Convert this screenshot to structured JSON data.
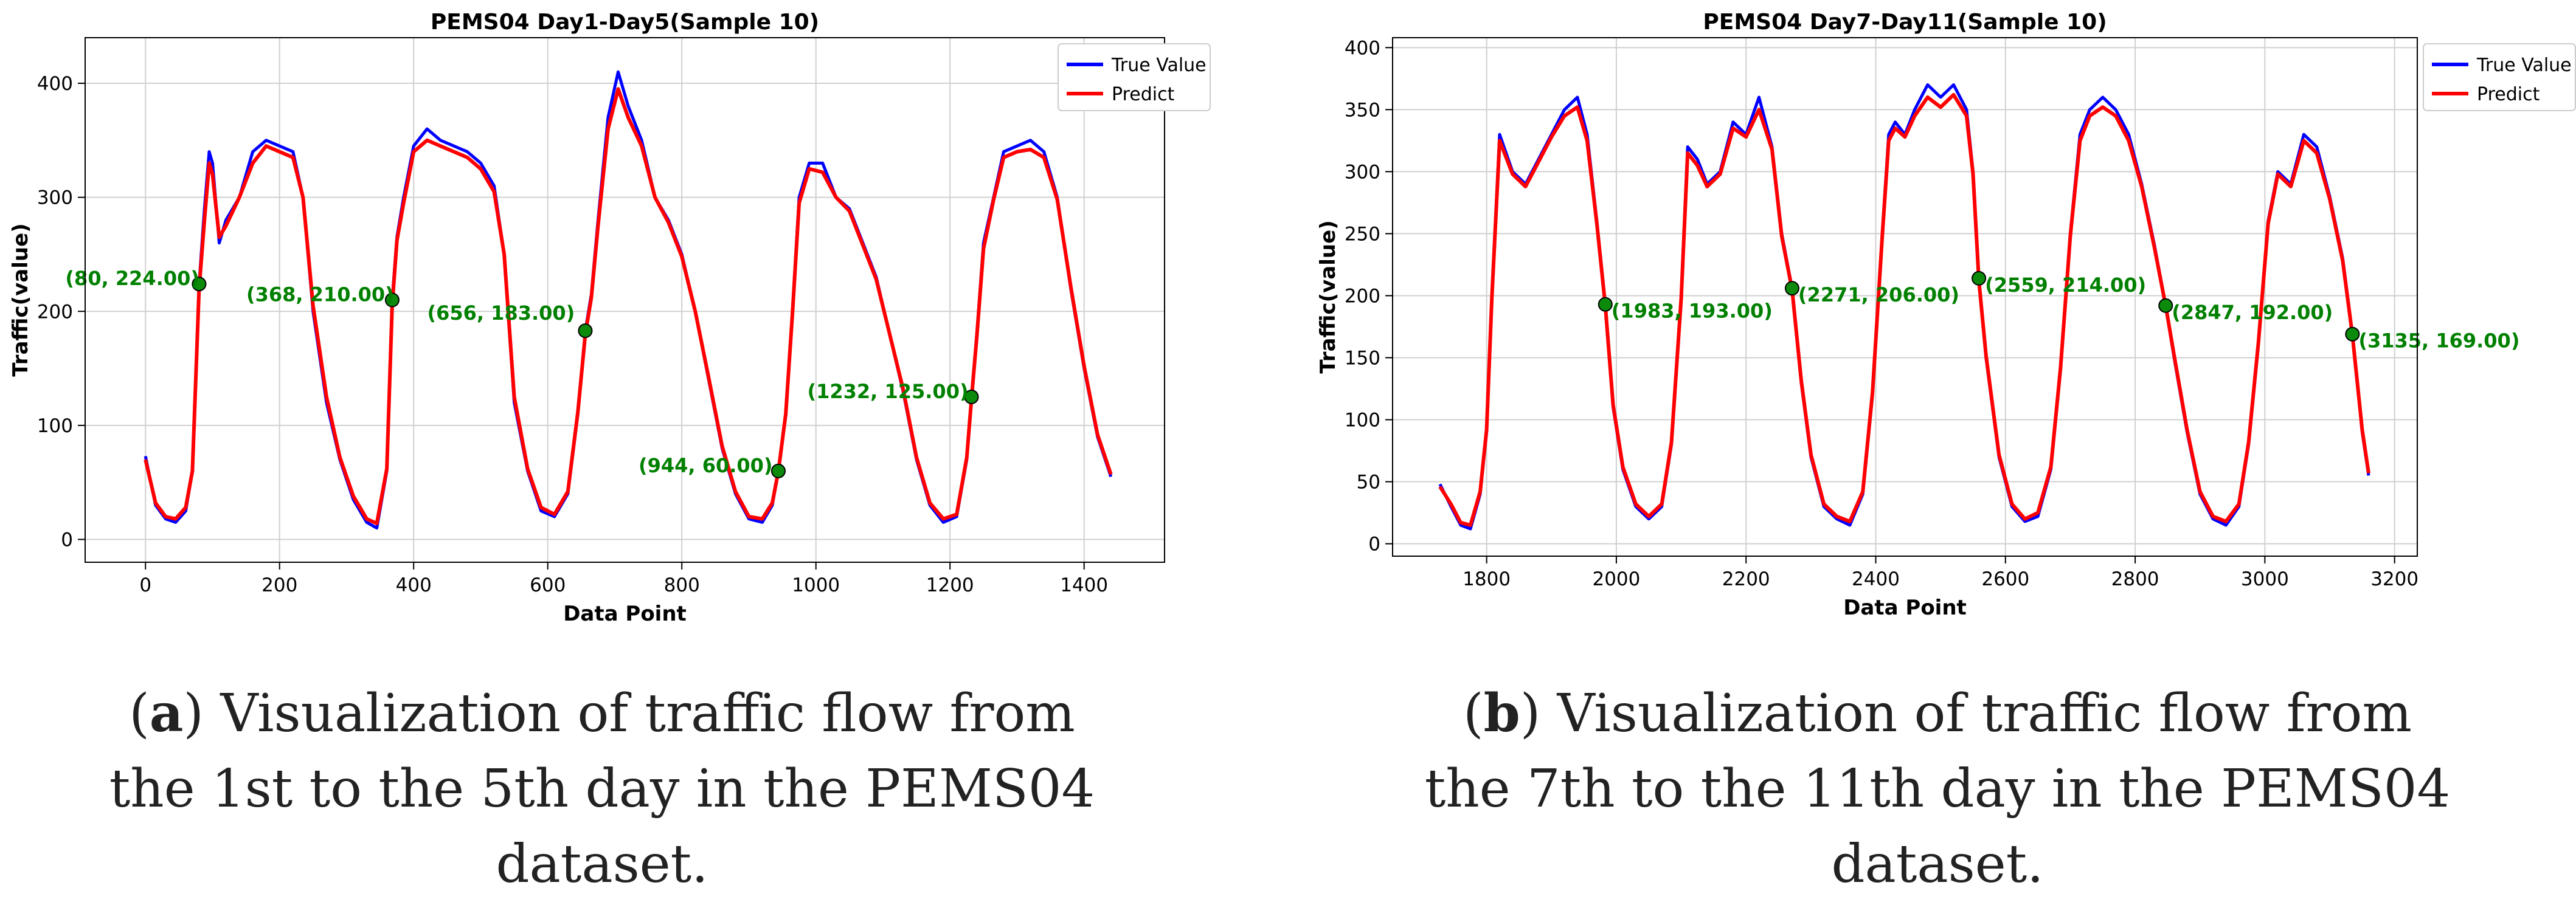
{
  "chart_data": [
    {
      "type": "line",
      "title": "PEMS04 Day1-Day5(Sample 10)",
      "xlabel": "Data Point",
      "ylabel": "Traffic(value)",
      "xlim": [
        -90,
        1520
      ],
      "ylim": [
        -20,
        440
      ],
      "xticks": [
        0,
        200,
        400,
        600,
        800,
        1000,
        1200,
        1400
      ],
      "yticks": [
        0,
        100,
        200,
        300,
        400
      ],
      "grid": true,
      "legend_position": "top-right",
      "series": [
        {
          "name": "True Value",
          "color": "#0000ff",
          "x": [
            0,
            15,
            30,
            45,
            60,
            70,
            80,
            88,
            95,
            100,
            110,
            120,
            140,
            160,
            180,
            200,
            220,
            235,
            250,
            270,
            290,
            310,
            330,
            345,
            360,
            368,
            375,
            385,
            400,
            420,
            440,
            460,
            480,
            500,
            520,
            535,
            550,
            570,
            590,
            610,
            630,
            645,
            656,
            665,
            675,
            690,
            705,
            720,
            740,
            760,
            780,
            800,
            820,
            840,
            860,
            880,
            900,
            920,
            935,
            944,
            955,
            965,
            975,
            990,
            1010,
            1030,
            1050,
            1070,
            1090,
            1110,
            1130,
            1150,
            1170,
            1190,
            1210,
            1225,
            1232,
            1240,
            1250,
            1265,
            1280,
            1300,
            1320,
            1340,
            1360,
            1380,
            1400,
            1420,
            1440
          ],
          "y": [
            73,
            30,
            18,
            15,
            25,
            60,
            224,
            290,
            340,
            330,
            260,
            280,
            300,
            340,
            350,
            345,
            340,
            300,
            200,
            120,
            70,
            35,
            15,
            10,
            60,
            210,
            265,
            300,
            345,
            360,
            350,
            345,
            340,
            330,
            310,
            250,
            120,
            60,
            25,
            20,
            40,
            110,
            183,
            215,
            280,
            370,
            410,
            380,
            350,
            300,
            280,
            250,
            200,
            140,
            80,
            40,
            18,
            15,
            30,
            60,
            110,
            200,
            300,
            330,
            330,
            300,
            290,
            260,
            230,
            180,
            130,
            70,
            30,
            15,
            20,
            70,
            125,
            180,
            260,
            300,
            340,
            345,
            350,
            340,
            300,
            220,
            150,
            90,
            55
          ]
        },
        {
          "name": "Predict",
          "color": "#ff0000",
          "x": [
            0,
            15,
            30,
            45,
            60,
            70,
            80,
            88,
            95,
            100,
            110,
            120,
            140,
            160,
            180,
            200,
            220,
            235,
            250,
            270,
            290,
            310,
            330,
            345,
            360,
            368,
            375,
            385,
            400,
            420,
            440,
            460,
            480,
            500,
            520,
            535,
            550,
            570,
            590,
            610,
            630,
            645,
            656,
            665,
            675,
            690,
            705,
            720,
            740,
            760,
            780,
            800,
            820,
            840,
            860,
            880,
            900,
            920,
            935,
            944,
            955,
            965,
            975,
            990,
            1010,
            1030,
            1050,
            1070,
            1090,
            1110,
            1130,
            1150,
            1170,
            1190,
            1210,
            1225,
            1232,
            1240,
            1250,
            1265,
            1280,
            1300,
            1320,
            1340,
            1360,
            1380,
            1400,
            1420,
            1440
          ],
          "y": [
            70,
            32,
            20,
            18,
            28,
            60,
            220,
            280,
            330,
            320,
            265,
            275,
            300,
            330,
            345,
            340,
            335,
            300,
            205,
            125,
            72,
            38,
            18,
            14,
            62,
            205,
            262,
            295,
            340,
            350,
            345,
            340,
            335,
            325,
            305,
            250,
            125,
            62,
            28,
            22,
            42,
            112,
            180,
            212,
            275,
            360,
            395,
            370,
            345,
            300,
            278,
            248,
            200,
            142,
            82,
            42,
            20,
            18,
            32,
            60,
            110,
            198,
            295,
            325,
            322,
            300,
            288,
            258,
            228,
            180,
            132,
            72,
            32,
            18,
            22,
            72,
            123,
            178,
            255,
            298,
            335,
            340,
            342,
            335,
            298,
            222,
            152,
            92,
            57
          ]
        }
      ],
      "annotations": [
        {
          "x": 80,
          "y": 224,
          "label": "(80, 224.00)"
        },
        {
          "x": 368,
          "y": 210,
          "label": "(368, 210.00)"
        },
        {
          "x": 656,
          "y": 183,
          "label": "(656, 183.00)"
        },
        {
          "x": 944,
          "y": 60,
          "label": "(944, 60.00)"
        },
        {
          "x": 1232,
          "y": 125,
          "label": "(1232, 125.00)"
        }
      ]
    },
    {
      "type": "line",
      "title": "PEMS04 Day7-Day11(Sample 10)",
      "xlabel": "Data Point",
      "ylabel": "Traffic(value)",
      "xlim": [
        1655,
        3235
      ],
      "ylim": [
        -10,
        408
      ],
      "xticks": [
        1800,
        2000,
        2200,
        2400,
        2600,
        2800,
        3000,
        3200
      ],
      "yticks": [
        0,
        50,
        100,
        150,
        200,
        250,
        300,
        350,
        400
      ],
      "grid": true,
      "legend_position": "top-right",
      "series": [
        {
          "name": "True Value",
          "color": "#0000ff",
          "x": [
            1728,
            1745,
            1760,
            1775,
            1790,
            1800,
            1808,
            1820,
            1840,
            1860,
            1880,
            1900,
            1920,
            1940,
            1955,
            1970,
            1983,
            1995,
            2010,
            2030,
            2050,
            2070,
            2085,
            2100,
            2110,
            2125,
            2140,
            2160,
            2180,
            2200,
            2220,
            2240,
            2255,
            2271,
            2285,
            2300,
            2320,
            2340,
            2360,
            2380,
            2395,
            2410,
            2420,
            2430,
            2445,
            2460,
            2480,
            2500,
            2520,
            2540,
            2550,
            2559,
            2570,
            2590,
            2610,
            2630,
            2650,
            2670,
            2685,
            2700,
            2715,
            2730,
            2750,
            2770,
            2790,
            2810,
            2830,
            2847,
            2860,
            2880,
            2900,
            2920,
            2940,
            2960,
            2975,
            2990,
            3005,
            3020,
            3040,
            3060,
            3080,
            3100,
            3120,
            3135,
            3150,
            3160
          ],
          "y": [
            48,
            30,
            15,
            12,
            40,
            90,
            200,
            330,
            300,
            290,
            310,
            330,
            350,
            360,
            330,
            260,
            193,
            110,
            60,
            30,
            20,
            30,
            80,
            200,
            320,
            310,
            290,
            300,
            340,
            330,
            360,
            320,
            250,
            206,
            130,
            70,
            30,
            20,
            15,
            40,
            120,
            250,
            330,
            340,
            330,
            350,
            370,
            360,
            370,
            350,
            300,
            214,
            150,
            70,
            30,
            18,
            22,
            60,
            140,
            250,
            330,
            350,
            360,
            350,
            330,
            290,
            240,
            192,
            150,
            90,
            40,
            20,
            15,
            30,
            80,
            160,
            260,
            300,
            290,
            330,
            320,
            280,
            230,
            169,
            90,
            55
          ]
        },
        {
          "name": "Predict",
          "color": "#ff0000",
          "x": [
            1728,
            1745,
            1760,
            1775,
            1790,
            1800,
            1808,
            1820,
            1840,
            1860,
            1880,
            1900,
            1920,
            1940,
            1955,
            1970,
            1983,
            1995,
            2010,
            2030,
            2050,
            2070,
            2085,
            2100,
            2110,
            2125,
            2140,
            2160,
            2180,
            2200,
            2220,
            2240,
            2255,
            2271,
            2285,
            2300,
            2320,
            2340,
            2360,
            2380,
            2395,
            2410,
            2420,
            2430,
            2445,
            2460,
            2480,
            2500,
            2520,
            2540,
            2550,
            2559,
            2570,
            2590,
            2610,
            2630,
            2650,
            2670,
            2685,
            2700,
            2715,
            2730,
            2750,
            2770,
            2790,
            2810,
            2830,
            2847,
            2860,
            2880,
            2900,
            2920,
            2940,
            2960,
            2975,
            2990,
            3005,
            3020,
            3040,
            3060,
            3080,
            3100,
            3120,
            3135,
            3150,
            3160
          ],
          "y": [
            46,
            32,
            17,
            15,
            42,
            92,
            198,
            325,
            298,
            288,
            308,
            328,
            345,
            352,
            325,
            258,
            192,
            112,
            62,
            32,
            22,
            32,
            82,
            198,
            315,
            305,
            288,
            298,
            335,
            328,
            350,
            318,
            248,
            205,
            132,
            72,
            32,
            22,
            18,
            42,
            122,
            248,
            325,
            335,
            328,
            345,
            360,
            352,
            362,
            345,
            298,
            212,
            152,
            72,
            32,
            20,
            25,
            62,
            142,
            248,
            325,
            345,
            352,
            345,
            325,
            288,
            238,
            192,
            152,
            92,
            42,
            22,
            18,
            32,
            82,
            162,
            258,
            298,
            288,
            325,
            315,
            278,
            228,
            168,
            92,
            57
          ]
        }
      ],
      "annotations": [
        {
          "x": 1983,
          "y": 193,
          "label": "(1983, 193.00)"
        },
        {
          "x": 2271,
          "y": 206,
          "label": "(2271, 206.00)"
        },
        {
          "x": 2559,
          "y": 214,
          "label": "(2559, 214.00)"
        },
        {
          "x": 2847,
          "y": 192,
          "label": "(2847, 192.00)"
        },
        {
          "x": 3135,
          "y": 169,
          "label": "(3135, 169.00)"
        }
      ]
    }
  ],
  "captions": [
    {
      "letter": "a",
      "text": "Visualization of traffic flow from the 1st to the 5th day in the PEMS04 dataset."
    },
    {
      "letter": "b",
      "text": "Visualization of traffic flow from the 7th to the 11th day in the PEMS04 dataset."
    }
  ],
  "colors": {
    "true_value": "#0000ff",
    "predict": "#ff0000",
    "annotation": "#008000",
    "grid": "#d0d0d0"
  }
}
